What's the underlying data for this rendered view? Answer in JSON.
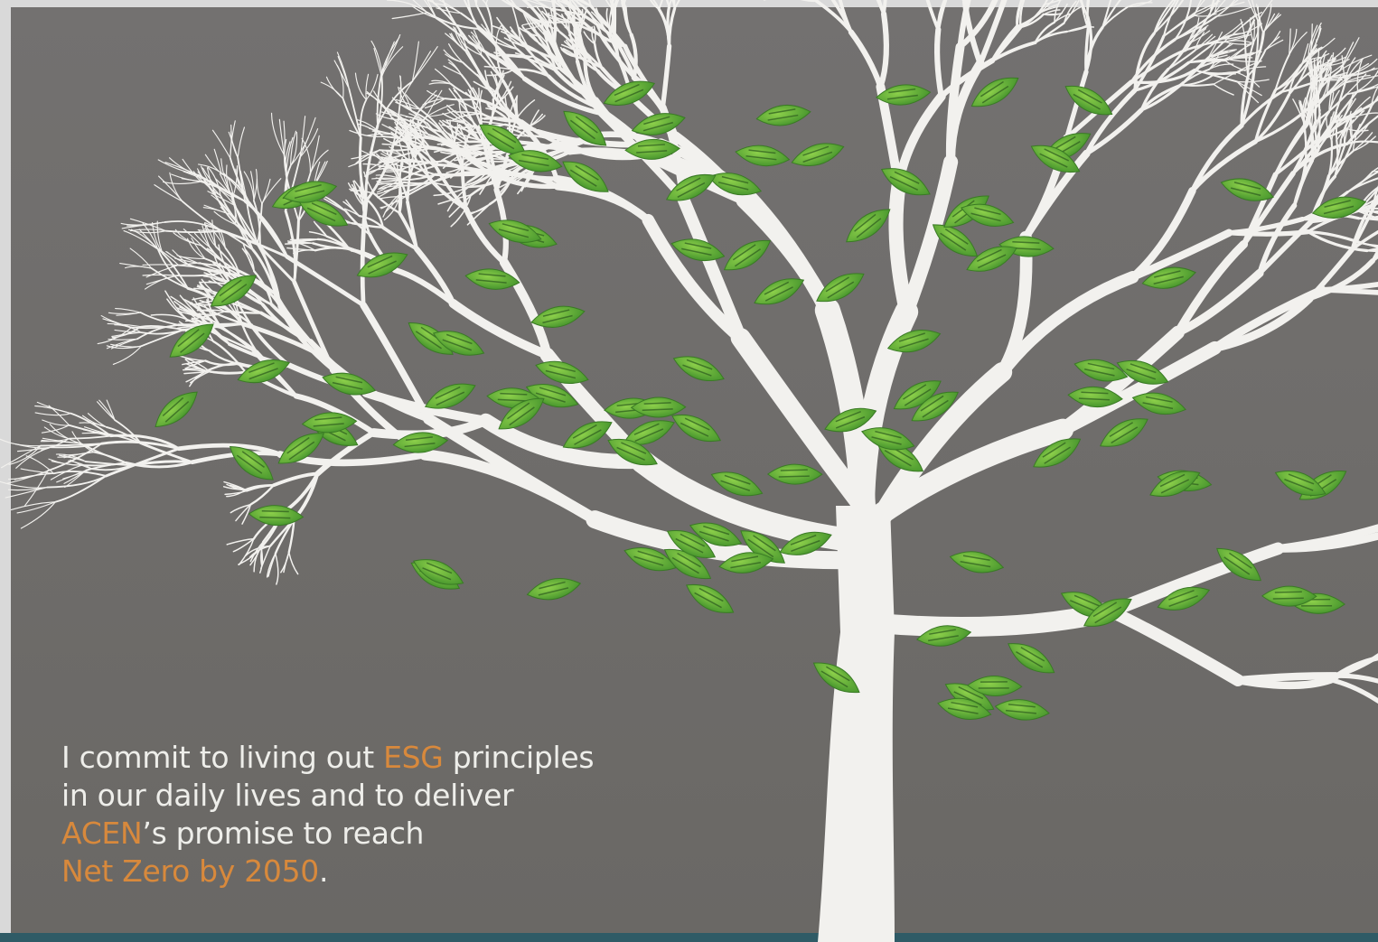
{
  "pledge": {
    "lines": [
      [
        {
          "text": "I commit to living out "
        },
        {
          "text": "ESG",
          "accent": true
        },
        {
          "text": " principles"
        }
      ],
      [
        {
          "text": "in our daily lives and to deliver"
        }
      ],
      [
        {
          "text": "ACEN",
          "accent": true
        },
        {
          "text": "’s promise to reach"
        }
      ],
      [
        {
          "text": "Net Zero by 2050",
          "accent": true
        },
        {
          "text": "."
        }
      ]
    ]
  }
}
